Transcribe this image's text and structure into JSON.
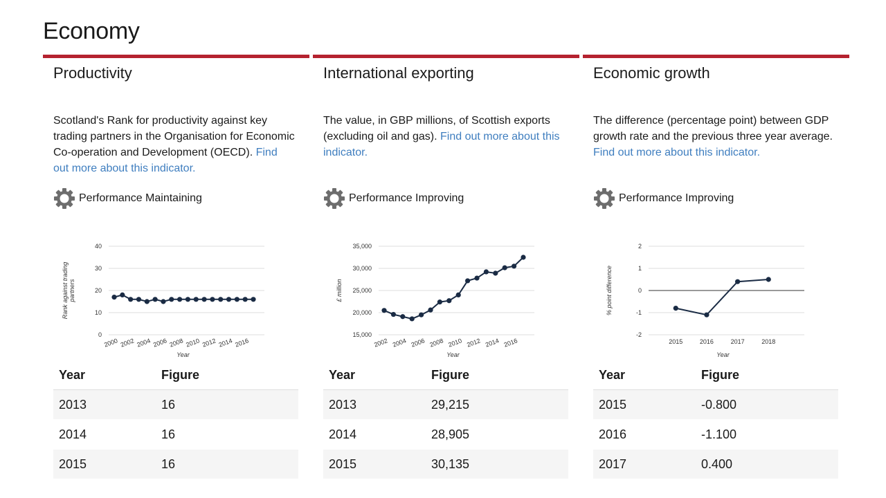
{
  "page": {
    "title": "Economy"
  },
  "panels": [
    {
      "heading": "Productivity",
      "description": "Scotland's Rank for productivity against key trading partners in the Organisation for Economic Co-operation and Development (OECD).",
      "link": "Find out more about this indicator.",
      "performance": "Performance Maintaining",
      "table": {
        "headers": [
          "Year",
          "Figure"
        ],
        "rows": [
          [
            "2013",
            "16"
          ],
          [
            "2014",
            "16"
          ],
          [
            "2015",
            "16"
          ]
        ]
      }
    },
    {
      "heading": "International exporting",
      "description": "The value, in GBP millions, of Scottish exports (excluding oil and gas).",
      "link": "Find out more about this indicator.",
      "performance": "Performance Improving",
      "table": {
        "headers": [
          "Year",
          "Figure"
        ],
        "rows": [
          [
            "2013",
            "29,215"
          ],
          [
            "2014",
            "28,905"
          ],
          [
            "2015",
            "30,135"
          ]
        ]
      }
    },
    {
      "heading": "Economic growth",
      "description": "The difference (percentage point) between GDP growth rate and the previous three year average.",
      "link": "Find out more about this indicator.",
      "performance": "Performance Improving",
      "table": {
        "headers": [
          "Year",
          "Figure"
        ],
        "rows": [
          [
            "2015",
            "-0.800"
          ],
          [
            "2016",
            "-1.100"
          ],
          [
            "2017",
            "0.400"
          ]
        ]
      }
    }
  ],
  "chart_data": [
    {
      "type": "line",
      "xlabel": "Year",
      "ylabel": "Rank against trading partners",
      "ylim": [
        0,
        40
      ],
      "yticks": [
        "0",
        "10",
        "20",
        "30",
        "40"
      ],
      "xticks": [
        "2000",
        "2002",
        "2004",
        "2006",
        "2008",
        "2010",
        "2012",
        "2014",
        "2016"
      ],
      "x": [
        2000,
        2001,
        2002,
        2003,
        2004,
        2005,
        2006,
        2007,
        2008,
        2009,
        2010,
        2011,
        2012,
        2013,
        2014,
        2015,
        2016,
        2017
      ],
      "values": [
        17,
        18,
        16,
        16,
        15,
        16,
        15,
        16,
        16,
        16,
        16,
        16,
        16,
        16,
        16,
        16,
        16,
        16
      ],
      "xlim": [
        2000,
        2017
      ],
      "grid": true,
      "color": "#1a2b44"
    },
    {
      "type": "line",
      "xlabel": "Year",
      "ylabel": "£ million",
      "ylim": [
        15000,
        35000
      ],
      "yticks": [
        "15,000",
        "20,000",
        "25,000",
        "30,000",
        "35,000"
      ],
      "xticks": [
        "2002",
        "2004",
        "2006",
        "2008",
        "2010",
        "2012",
        "2014",
        "2016"
      ],
      "x": [
        2002,
        2003,
        2004,
        2005,
        2006,
        2007,
        2008,
        2009,
        2010,
        2011,
        2012,
        2013,
        2014,
        2015,
        2016,
        2017
      ],
      "values": [
        20500,
        19600,
        19100,
        18600,
        19500,
        20600,
        22400,
        22700,
        24000,
        27200,
        27800,
        29215,
        28905,
        30135,
        30500,
        32500
      ],
      "xlim": [
        2002,
        2017
      ],
      "grid": true,
      "color": "#1a2b44"
    },
    {
      "type": "line",
      "xlabel": "Year",
      "ylabel": "% point difference",
      "ylim": [
        -2,
        2
      ],
      "yticks": [
        "-2",
        "-1",
        "0",
        "1",
        "2"
      ],
      "xticks": [
        "2015",
        "2016",
        "2017",
        "2018"
      ],
      "x": [
        2015,
        2016,
        2017,
        2018
      ],
      "values": [
        -0.8,
        -1.1,
        0.4,
        0.5
      ],
      "xlim": [
        2014.3,
        2018.8
      ],
      "grid": true,
      "color": "#1a2b44"
    }
  ]
}
